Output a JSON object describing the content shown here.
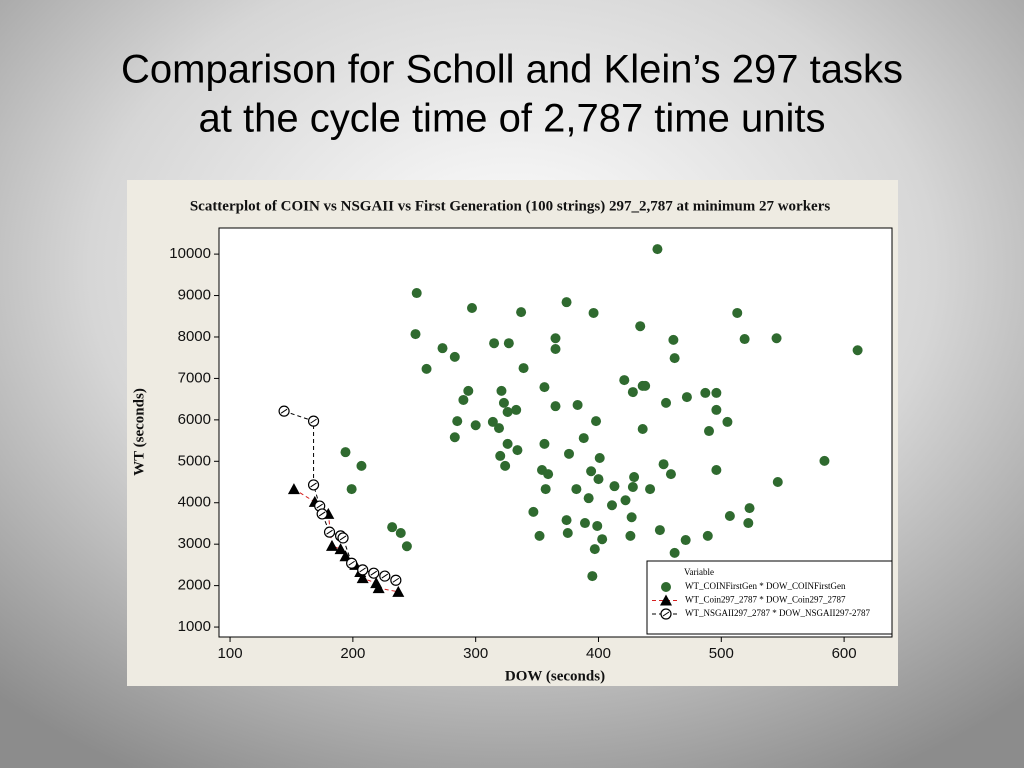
{
  "slide": {
    "title": [
      "Comparison for Scholl and Klein’s 297 tasks",
      "at the cycle time of 2,787 time units"
    ]
  },
  "chart_data": {
    "type": "scatter",
    "title": "Scatterplot of COIN vs NSGAII vs First Generation (100 strings) 297_2,787 at minimum 27 workers",
    "xlabel": "DOW  (seconds)",
    "ylabel": "WT  (seconds)",
    "legend_title": "Variable",
    "legend": "bottom-right",
    "xlim": [
      91,
      639
    ],
    "ylim": [
      760,
      10630
    ],
    "xticks": [
      100,
      200,
      300,
      400,
      500,
      600
    ],
    "yticks": [
      1000,
      2000,
      3000,
      4000,
      5000,
      6000,
      7000,
      8000,
      9000,
      10000
    ],
    "series": [
      {
        "name": "WT_COINFirstGen * DOW_COINFirstGen",
        "color": "#2f6a2f",
        "marker": "circle",
        "line": null,
        "line_color": null,
        "x": [
          448,
          252,
          297,
          337,
          374,
          396,
          434,
          513,
          251,
          273,
          283,
          260,
          315,
          327,
          365,
          365,
          461,
          462,
          519,
          545,
          611,
          339,
          294,
          290,
          321,
          356,
          323,
          326,
          333,
          365,
          383,
          285,
          300,
          314,
          319,
          283,
          398,
          421,
          428,
          436,
          438,
          455,
          472,
          487,
          496,
          496,
          505,
          490,
          436,
          326,
          334,
          356,
          388,
          320,
          324,
          376,
          354,
          359,
          394,
          401,
          400,
          453,
          459,
          496,
          429,
          382,
          357,
          392,
          413,
          428,
          442,
          422,
          411,
          347,
          427,
          374,
          389,
          399,
          352,
          375,
          403,
          426,
          450,
          471,
          489,
          507,
          523,
          522,
          462,
          397,
          395,
          584,
          546,
          194,
          207,
          199,
          232,
          239,
          244
        ],
        "values": [
          10120,
          9060,
          8700,
          8600,
          8840,
          8580,
          8260,
          8580,
          8070,
          7730,
          7520,
          7230,
          7850,
          7850,
          7970,
          7710,
          7930,
          7490,
          7950,
          7970,
          7680,
          7250,
          6700,
          6480,
          6700,
          6790,
          6410,
          6190,
          6240,
          6330,
          6360,
          5970,
          5870,
          5950,
          5800,
          5580,
          5970,
          6960,
          6670,
          6820,
          6820,
          6410,
          6550,
          6650,
          6650,
          6240,
          5950,
          5730,
          5780,
          5420,
          5270,
          5420,
          5560,
          5130,
          4890,
          5180,
          4790,
          4690,
          4760,
          5080,
          4570,
          4930,
          4690,
          4790,
          4620,
          4330,
          4330,
          4110,
          4400,
          4380,
          4330,
          4060,
          3940,
          3780,
          3650,
          3580,
          3510,
          3440,
          3200,
          3270,
          3120,
          3200,
          3340,
          3100,
          3200,
          3680,
          3870,
          3510,
          2790,
          2880,
          2230,
          5010,
          4500,
          5220,
          4890,
          4330,
          3410,
          3270,
          2950
        ]
      },
      {
        "name": "WT_Coin297_2787 * DOW_Coin297_2787",
        "color": "#000000",
        "marker": "triangle",
        "line": "dashed",
        "line_color": "#d62020",
        "x": [
          152,
          169,
          180,
          183,
          190,
          194,
          202,
          206,
          208,
          219,
          221,
          237
        ],
        "values": [
          4330,
          4020,
          3730,
          2960,
          2880,
          2710,
          2500,
          2330,
          2180,
          2060,
          1940,
          1850
        ]
      },
      {
        "name": "WT_NSGAII297_2787 * DOW_NSGAII297-2787",
        "color": "#000000",
        "marker": "open-circle",
        "line": "dashed",
        "line_color": "#000000",
        "x": [
          144,
          168,
          168,
          173,
          175,
          181,
          190,
          192,
          199,
          208,
          217,
          226,
          235
        ],
        "values": [
          6210,
          5970,
          4430,
          3920,
          3730,
          3290,
          3200,
          3150,
          2540,
          2380,
          2300,
          2230,
          2130
        ]
      }
    ]
  }
}
